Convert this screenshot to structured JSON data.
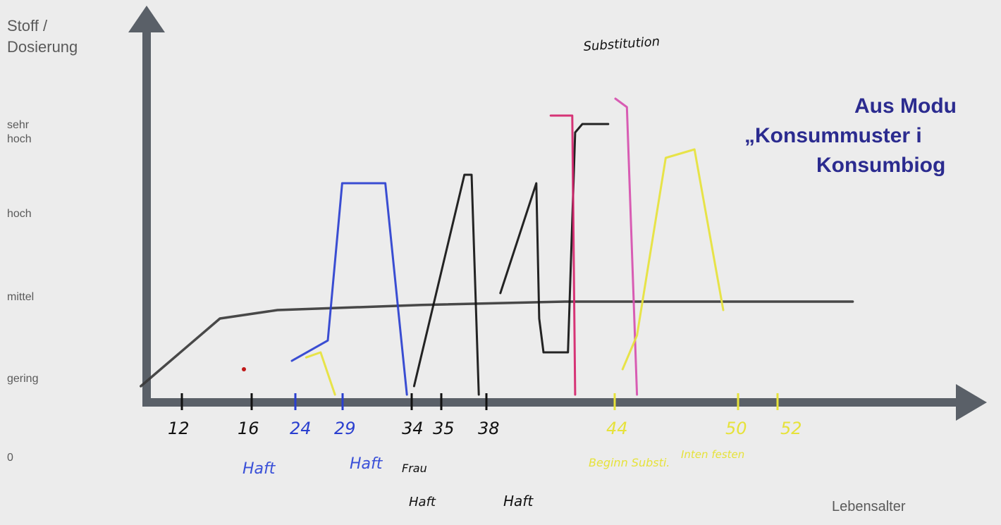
{
  "chart_data": {
    "type": "line",
    "ylabel": "Stoff /\nDosierung",
    "xlabel": "Lebensalter",
    "y_ticks": [
      "sehr\nhoch",
      "hoch",
      "mittel",
      "gering",
      "0"
    ],
    "x_ticks": [
      {
        "label": "12",
        "color": "#111111"
      },
      {
        "label": "16",
        "color": "#111111"
      },
      {
        "label": "24",
        "color": "#2a3fcf"
      },
      {
        "label": "29",
        "color": "#2a3fcf"
      },
      {
        "label": "34",
        "color": "#111111"
      },
      {
        "label": "35",
        "color": "#111111"
      },
      {
        "label": "38",
        "color": "#111111"
      },
      {
        "label": "44",
        "color": "#e6e23a"
      },
      {
        "label": "50",
        "color": "#e6e23a"
      },
      {
        "label": "52",
        "color": "#e6e23a"
      }
    ],
    "annotations": [
      {
        "text": "Haft",
        "color": "#3a50d8"
      },
      {
        "text": "Haft",
        "color": "#3a50d8"
      },
      {
        "text": "Frau",
        "color": "#111111"
      },
      {
        "text": "Haft",
        "color": "#111111"
      },
      {
        "text": "Haft",
        "color": "#111111"
      },
      {
        "text": "Substitution",
        "color": "#111111"
      },
      {
        "text": "Beginn Substi.",
        "color": "#e6e23a"
      },
      {
        "text": "Inten festen",
        "color": "#e6e23a"
      }
    ],
    "series": [
      {
        "color": "#3a3a3a",
        "points": [
          [
            10.5,
            0.05
          ],
          [
            16,
            0.45
          ],
          [
            20,
            0.5
          ],
          [
            30,
            0.53
          ],
          [
            40,
            0.55
          ],
          [
            50,
            0.55
          ],
          [
            60,
            0.55
          ]
        ]
      },
      {
        "color": "#2a3fcf",
        "points": [
          [
            21,
            0.2
          ],
          [
            23.5,
            0.32
          ],
          [
            24.5,
            1.25
          ],
          [
            27.5,
            1.25
          ],
          [
            29,
            0.0
          ]
        ]
      },
      {
        "color": "#111111",
        "points": [
          [
            29.5,
            0.05
          ],
          [
            33,
            1.3
          ],
          [
            33.5,
            1.3
          ],
          [
            34,
            0.0
          ]
        ]
      },
      {
        "color": "#111111",
        "points": [
          [
            35.5,
            0.6
          ],
          [
            38,
            1.25
          ],
          [
            38.2,
            0.45
          ],
          [
            38.5,
            0.25
          ],
          [
            40.2,
            0.25
          ],
          [
            40.7,
            1.55
          ],
          [
            41.2,
            1.6
          ],
          [
            43,
            1.6
          ]
        ]
      },
      {
        "color": "#d4246b",
        "points": [
          [
            39,
            1.65
          ],
          [
            40.5,
            1.65
          ],
          [
            40.7,
            0.0
          ]
        ]
      },
      {
        "color": "#d64fae",
        "points": [
          [
            43.5,
            1.75
          ],
          [
            44.3,
            1.7
          ],
          [
            45,
            0.0
          ]
        ]
      },
      {
        "color": "#e6e23a",
        "points": [
          [
            44,
            0.15
          ],
          [
            45,
            0.35
          ],
          [
            47,
            1.4
          ],
          [
            49,
            1.45
          ],
          [
            51,
            0.5
          ]
        ]
      },
      {
        "color": "#e6e23a",
        "points": [
          [
            22,
            0.22
          ],
          [
            23,
            0.25
          ],
          [
            24,
            0.0
          ]
        ]
      }
    ],
    "y_levels": [
      "0",
      "gering",
      "mittel",
      "hoch",
      "sehr hoch"
    ]
  },
  "module_title": {
    "line1": "Aus Modu",
    "line2": "„Konsummuster i",
    "line3": "Konsumbiog"
  },
  "marker": {
    "color": "#c01818"
  }
}
